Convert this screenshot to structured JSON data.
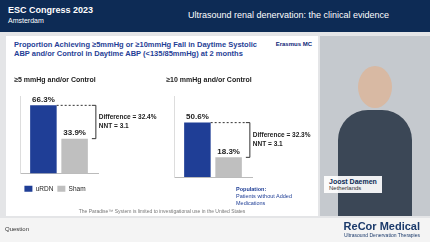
{
  "header": {
    "event": "ESC Congress 2023",
    "city": "Amsterdam",
    "title": "Ultrasound renal denervation: the clinical evidence"
  },
  "slide": {
    "title": "Proportion Achieving ≥5mmHg or ≥10mmHg Fall in Daytime Systolic ABP and/or Control in Daytime ABP (<135/85mmHg) at 2 months",
    "logo": "Erasmus MC",
    "population_label": "Population:",
    "population": "Patients without Added Medications",
    "footer": "The Paradise™ System is limited to investigational use in the United States"
  },
  "speaker": {
    "name": "Joost Daemen",
    "country": "Netherlands"
  },
  "player": {
    "button": "Question"
  },
  "sponsor": {
    "name": "ReCor Medical",
    "tagline": "Ultrasound Denervation Therapies"
  },
  "chart_data": [
    {
      "type": "bar",
      "title": "≥5 mmHg and/or Control",
      "categories": [
        null
      ],
      "series": [
        {
          "name": "uRDN",
          "color": "#1f3e96",
          "values": [
            66.3
          ],
          "value_labels": [
            "66.3%"
          ]
        },
        {
          "name": "Sham",
          "color": "#bfbfbf",
          "values": [
            33.9
          ],
          "value_labels": [
            "33.9%"
          ]
        }
      ],
      "ylim": [
        0,
        75
      ],
      "grid": false,
      "tick_labels": false,
      "data_labels": true,
      "legend": "bottom",
      "annotation": [
        "Difference = 32.4%",
        "NNT = 3.1"
      ]
    },
    {
      "type": "bar",
      "title": "≥10 mmHg and/or Control",
      "categories": [
        null
      ],
      "series": [
        {
          "name": "uRDN",
          "color": "#1f3e96",
          "values": [
            50.6
          ],
          "value_labels": [
            "50.6%"
          ]
        },
        {
          "name": "Sham",
          "color": "#bfbfbf",
          "values": [
            18.3
          ],
          "value_labels": [
            "18.3%"
          ]
        }
      ],
      "ylim": [
        0,
        75
      ],
      "grid": false,
      "tick_labels": false,
      "data_labels": true,
      "annotation": [
        "Difference = 32.3%",
        "NNT = 3.1"
      ]
    }
  ]
}
